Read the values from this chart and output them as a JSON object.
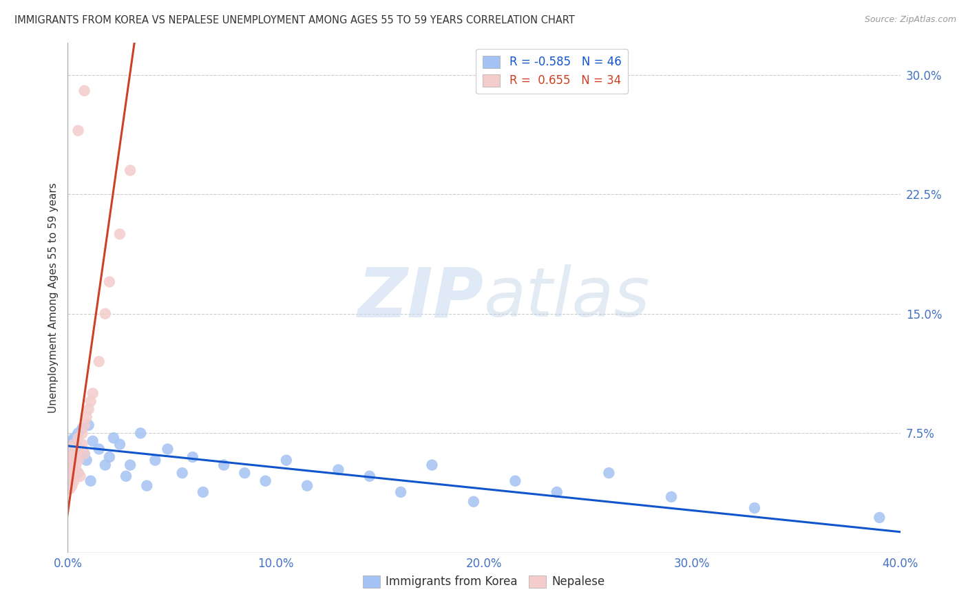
{
  "title": "IMMIGRANTS FROM KOREA VS NEPALESE UNEMPLOYMENT AMONG AGES 55 TO 59 YEARS CORRELATION CHART",
  "source": "Source: ZipAtlas.com",
  "ylabel": "Unemployment Among Ages 55 to 59 years",
  "korea_color": "#a4c2f4",
  "nepalese_color": "#f4cccc",
  "korea_line_color": "#1155cc",
  "nepalese_line_color": "#cc4125",
  "korea_R": -0.585,
  "korea_N": 46,
  "nepalese_R": 0.655,
  "nepalese_N": 34,
  "legend_korea_label": "Immigrants from Korea",
  "legend_nepalese_label": "Nepalese",
  "watermark_zip": "ZIP",
  "watermark_atlas": "atlas",
  "xmin": 0.0,
  "xmax": 0.4,
  "ymin": 0.0,
  "ymax": 0.32,
  "ytick_vals": [
    0.075,
    0.15,
    0.225,
    0.3
  ],
  "ytick_labels": [
    "7.5%",
    "15.0%",
    "22.5%",
    "30.0%"
  ],
  "xtick_vals": [
    0.0,
    0.1,
    0.2,
    0.3,
    0.4
  ],
  "xtick_labels": [
    "0.0%",
    "10.0%",
    "20.0%",
    "30.0%",
    "40.0%"
  ],
  "tick_color": "#4472c4",
  "grid_color": "#cccccc",
  "background": "#ffffff",
  "title_color": "#333333",
  "source_color": "#999999",
  "ylabel_color": "#333333",
  "korea_x": [
    0.001,
    0.002,
    0.002,
    0.003,
    0.003,
    0.004,
    0.004,
    0.005,
    0.005,
    0.006,
    0.007,
    0.008,
    0.009,
    0.01,
    0.011,
    0.012,
    0.015,
    0.018,
    0.02,
    0.022,
    0.025,
    0.028,
    0.03,
    0.035,
    0.038,
    0.042,
    0.048,
    0.055,
    0.06,
    0.065,
    0.075,
    0.085,
    0.095,
    0.105,
    0.115,
    0.13,
    0.145,
    0.16,
    0.175,
    0.195,
    0.215,
    0.235,
    0.26,
    0.29,
    0.33,
    0.39
  ],
  "korea_y": [
    0.065,
    0.07,
    0.055,
    0.072,
    0.058,
    0.068,
    0.06,
    0.075,
    0.05,
    0.065,
    0.078,
    0.062,
    0.058,
    0.08,
    0.045,
    0.07,
    0.065,
    0.055,
    0.06,
    0.072,
    0.068,
    0.048,
    0.055,
    0.075,
    0.042,
    0.058,
    0.065,
    0.05,
    0.06,
    0.038,
    0.055,
    0.05,
    0.045,
    0.058,
    0.042,
    0.052,
    0.048,
    0.038,
    0.055,
    0.032,
    0.045,
    0.038,
    0.05,
    0.035,
    0.028,
    0.022
  ],
  "nepalese_x": [
    0.001,
    0.001,
    0.001,
    0.001,
    0.001,
    0.002,
    0.002,
    0.002,
    0.002,
    0.003,
    0.003,
    0.003,
    0.004,
    0.004,
    0.005,
    0.005,
    0.005,
    0.006,
    0.006,
    0.007,
    0.007,
    0.008,
    0.008,
    0.009,
    0.01,
    0.011,
    0.012,
    0.015,
    0.018,
    0.02,
    0.025,
    0.03,
    0.005,
    0.008
  ],
  "nepalese_y": [
    0.05,
    0.045,
    0.06,
    0.04,
    0.055,
    0.048,
    0.058,
    0.042,
    0.065,
    0.052,
    0.068,
    0.045,
    0.06,
    0.055,
    0.072,
    0.05,
    0.058,
    0.065,
    0.048,
    0.075,
    0.068,
    0.08,
    0.062,
    0.085,
    0.09,
    0.095,
    0.1,
    0.12,
    0.15,
    0.17,
    0.2,
    0.24,
    0.265,
    0.29
  ],
  "korea_trendline_x0": 0.0,
  "korea_trendline_y0": 0.067,
  "korea_trendline_x1": 0.4,
  "korea_trendline_y1": 0.013,
  "nepal_trendline_x0": 0.0,
  "nepal_trendline_y0": 0.025,
  "nepal_trendline_x1": 0.032,
  "nepal_trendline_y1": 0.32
}
